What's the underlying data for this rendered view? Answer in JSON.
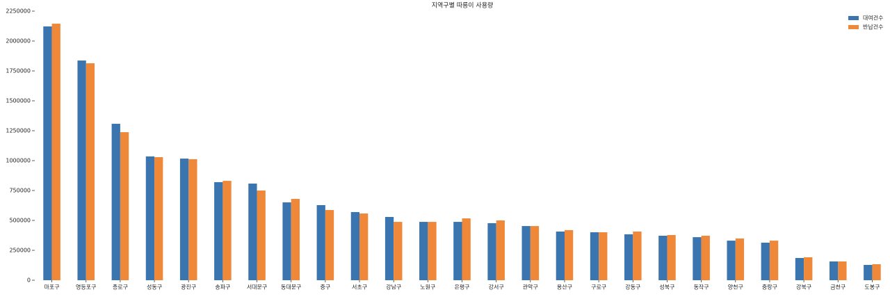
{
  "chart_data": {
    "type": "bar",
    "title": "지역구별 따릉이 사용량",
    "categories": [
      "마포구",
      "영등포구",
      "종로구",
      "성동구",
      "광진구",
      "송파구",
      "서대문구",
      "동대문구",
      "중구",
      "서초구",
      "강남구",
      "노원구",
      "은평구",
      "강서구",
      "관악구",
      "용산구",
      "구로구",
      "강동구",
      "성북구",
      "동작구",
      "양천구",
      "중랑구",
      "강북구",
      "금천구",
      "도봉구"
    ],
    "series": [
      {
        "name": "대여건수",
        "color": "#3b75af",
        "values": [
          2122000,
          1837000,
          1308000,
          1035000,
          1017000,
          820000,
          808000,
          651000,
          628000,
          570000,
          529000,
          488000,
          488000,
          477000,
          453000,
          407000,
          401000,
          384000,
          372000,
          360000,
          331000,
          314000,
          186000,
          157000,
          128000
        ]
      },
      {
        "name": "반납건수",
        "color": "#f0883a",
        "values": [
          2145000,
          1814000,
          1238000,
          1029000,
          1012000,
          831000,
          750000,
          680000,
          587000,
          558000,
          488000,
          488000,
          517000,
          500000,
          453000,
          419000,
          401000,
          407000,
          378000,
          372000,
          349000,
          331000,
          192000,
          157000,
          134000
        ]
      }
    ],
    "ylim": [
      0,
      2250000
    ],
    "yticks": [
      0,
      250000,
      500000,
      750000,
      1000000,
      1250000,
      1500000,
      1750000,
      2000000,
      2250000
    ],
    "legend": "upper right"
  }
}
